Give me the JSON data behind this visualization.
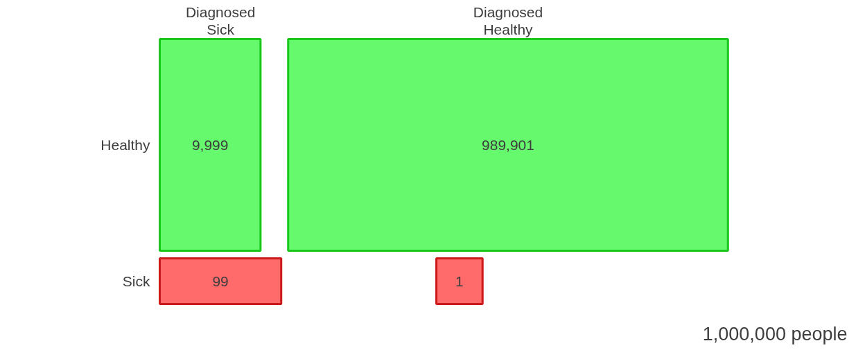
{
  "chart_data": {
    "type": "other",
    "categories": [
      "Diagnosed Sick",
      "Diagnosed Healthy"
    ],
    "series": [
      {
        "name": "Healthy",
        "color": "#66f96e",
        "values": [
          9999,
          989901
        ],
        "value_labels": [
          "9,999",
          "989,901"
        ]
      },
      {
        "name": "Sick",
        "color": "#ff6b6b",
        "values": [
          99,
          1
        ],
        "value_labels": [
          "99",
          "1"
        ]
      }
    ],
    "annotations": [
      "1,000,000 people"
    ]
  }
}
